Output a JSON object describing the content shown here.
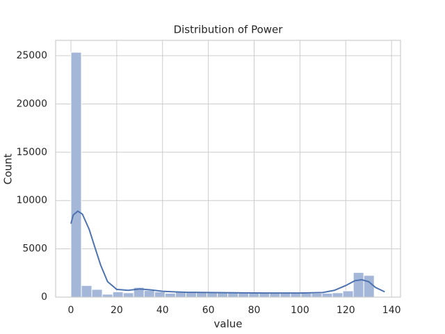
{
  "chart_data": {
    "type": "histogram",
    "title": "Distribution of Power",
    "xlabel": "value",
    "ylabel": "Count",
    "bins": [
      0,
      4.567,
      9.133,
      13.7,
      18.267,
      22.833,
      27.4,
      31.967,
      36.533,
      41.1,
      45.667,
      50.233,
      54.8,
      59.367,
      63.933,
      68.5,
      73.067,
      77.633,
      82.2,
      86.767,
      91.333,
      95.9,
      100.467,
      105.033,
      109.6,
      114.167,
      118.733,
      123.3,
      127.867,
      132.433
    ],
    "values": [
      25350,
      1200,
      800,
      300,
      550,
      450,
      1000,
      700,
      550,
      400,
      500,
      500,
      500,
      480,
      450,
      450,
      450,
      440,
      430,
      430,
      420,
      420,
      400,
      400,
      400,
      450,
      650,
      2550,
      2250
    ],
    "color": "#a5b7d8",
    "kde": {
      "color": "#4c72b0",
      "x": [
        0,
        1,
        3,
        5,
        8,
        10,
        13,
        16,
        20,
        25,
        30,
        35,
        40,
        50,
        60,
        80,
        100,
        110,
        115,
        120,
        124,
        127,
        130,
        133,
        137
      ],
      "y": [
        7600,
        8500,
        8900,
        8600,
        7000,
        5500,
        3300,
        1600,
        800,
        700,
        850,
        750,
        600,
        500,
        480,
        430,
        420,
        480,
        700,
        1200,
        1700,
        1800,
        1600,
        1000,
        550
      ]
    },
    "xlim": [
      -6.68,
      143.9
    ],
    "ylim": [
      0,
      26585
    ],
    "xticks": [
      0,
      20,
      40,
      60,
      80,
      100,
      120,
      140
    ],
    "yticks": [
      0,
      5000,
      10000,
      15000,
      20000,
      25000
    ],
    "grid": true
  }
}
